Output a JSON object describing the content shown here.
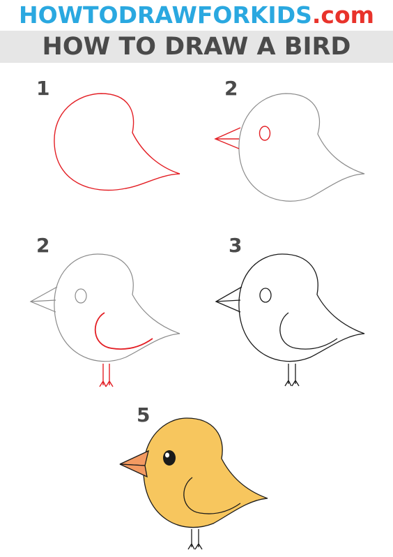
{
  "header": {
    "site_name": "HOWTODRAWFORKIDS",
    "site_domain": ".com",
    "page_title": "HOW TO DRAW A BIRD"
  },
  "steps": [
    {
      "number": "1"
    },
    {
      "number": "2"
    },
    {
      "number": "2"
    },
    {
      "number": "3"
    },
    {
      "number": "5"
    }
  ],
  "colors": {
    "title_blue": "#2aa8e0",
    "title_red": "#e8332b",
    "title_band": "#e6e6e6",
    "dark_text": "#4a4a4a",
    "new_line_red": "#e31e24",
    "old_line_gray": "#8a8a8a",
    "outline_black": "#1a1a1a",
    "bird_body_fill": "#f7c65e",
    "beak_fill": "#f39a62"
  }
}
